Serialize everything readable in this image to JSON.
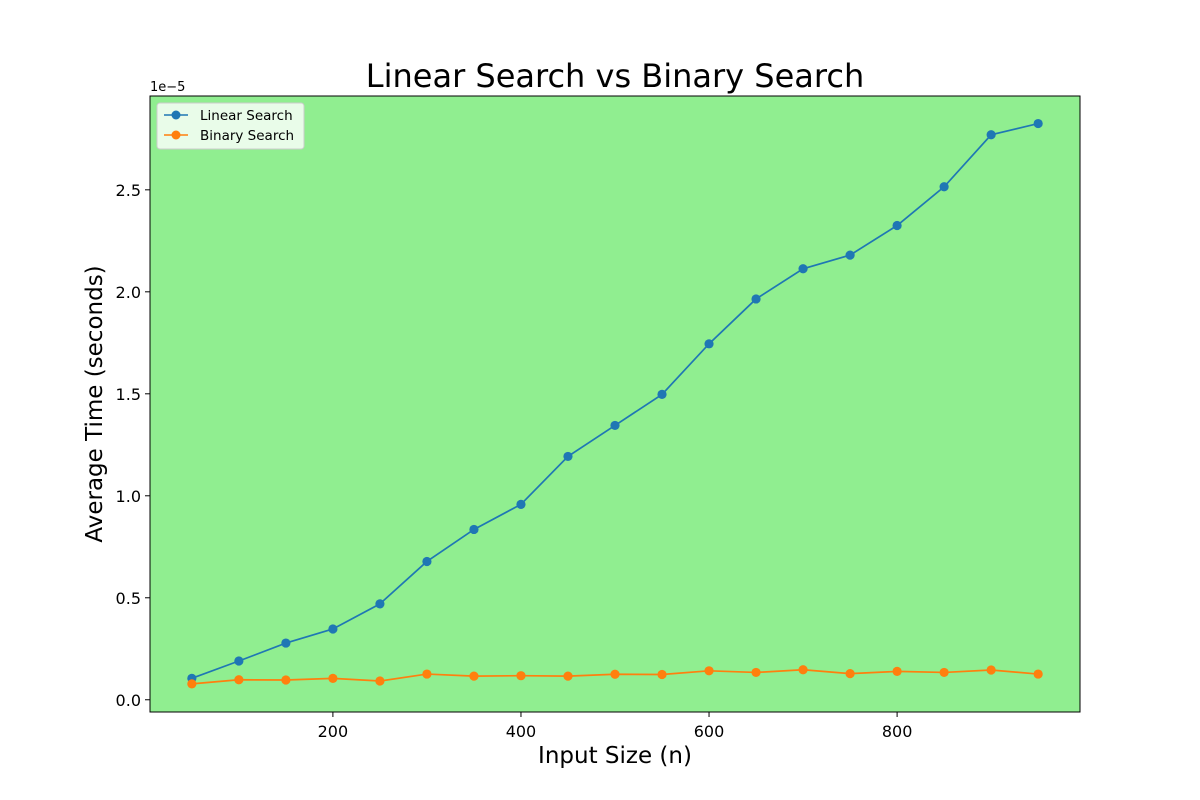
{
  "chart_data": {
    "type": "line",
    "title": "Linear Search vs Binary Search",
    "xlabel": "Input Size (n)",
    "ylabel": "Average Time (seconds)",
    "y_offset_label": "1e−5",
    "y_scale_factor": 1e-05,
    "x": [
      50,
      100,
      150,
      200,
      250,
      300,
      350,
      400,
      450,
      500,
      550,
      600,
      650,
      700,
      750,
      800,
      850,
      900,
      950
    ],
    "xticks": [
      200,
      400,
      600,
      800
    ],
    "yticks": [
      0.0,
      0.5,
      1.0,
      1.5,
      2.0,
      2.5
    ],
    "ytick_labels": [
      "0.0",
      "0.5",
      "1.0",
      "1.5",
      "2.0",
      "2.5"
    ],
    "xlim": [
      5.5,
      994.5
    ],
    "ylim": [
      -0.06,
      2.96
    ],
    "grid": false,
    "legend_position": "top-left",
    "background_color": "#90ee90",
    "series": [
      {
        "name": "Linear Search",
        "color": "#1f77b4",
        "values": [
          0.105,
          0.19,
          0.278,
          0.347,
          0.47,
          0.678,
          0.835,
          0.958,
          1.193,
          1.345,
          1.497,
          1.745,
          1.965,
          2.113,
          2.18,
          2.325,
          2.515,
          2.77,
          2.825
        ]
      },
      {
        "name": "Binary Search",
        "color": "#ff7f0e",
        "values": [
          0.078,
          0.098,
          0.097,
          0.105,
          0.092,
          0.126,
          0.116,
          0.118,
          0.116,
          0.125,
          0.124,
          0.142,
          0.134,
          0.147,
          0.128,
          0.139,
          0.134,
          0.146,
          0.126
        ]
      }
    ]
  }
}
